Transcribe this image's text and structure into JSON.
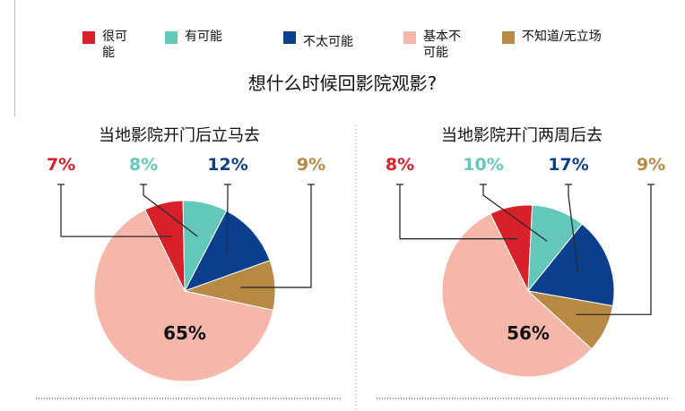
{
  "legend": [
    {
      "label": "很可\n能",
      "color": "#d7202a"
    },
    {
      "label": "有可能",
      "color": "#63c7b9"
    },
    {
      "label": "不太可能",
      "color": "#0b3f8c"
    },
    {
      "label": "基本不\n可能",
      "color": "#f6b7aa"
    },
    {
      "label": "不知道/无立场",
      "color": "#b68a45"
    }
  ],
  "title": "想什么时候回影院观影?",
  "chart_data": [
    {
      "type": "pie",
      "title": "当地影院开门后立马去",
      "categories": [
        "很可能",
        "有可能",
        "不太可能",
        "不知道/无立场",
        "基本不可能"
      ],
      "values": [
        7,
        8,
        12,
        9,
        65
      ],
      "labels": [
        "7%",
        "8%",
        "12%",
        "9%",
        "65%"
      ],
      "colors": [
        "#d7202a",
        "#63c7b9",
        "#0b3f8c",
        "#b68a45",
        "#f6b7aa"
      ]
    },
    {
      "type": "pie",
      "title": "当地影院开门两周后去",
      "categories": [
        "很可能",
        "有可能",
        "不太可能",
        "不知道/无立场",
        "基本不可能"
      ],
      "values": [
        8,
        10,
        17,
        9,
        56
      ],
      "labels": [
        "8%",
        "10%",
        "17%",
        "9%",
        "56%"
      ],
      "colors": [
        "#d7202a",
        "#63c7b9",
        "#0b3f8c",
        "#b68a45",
        "#f6b7aa"
      ]
    }
  ]
}
